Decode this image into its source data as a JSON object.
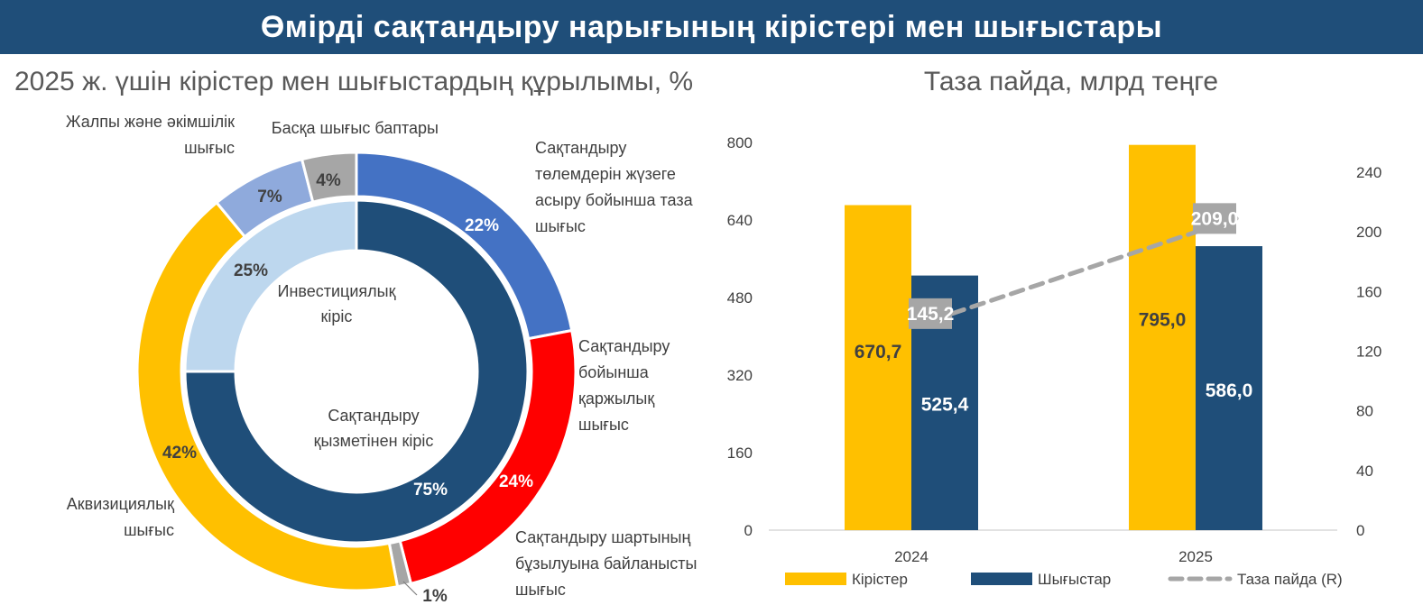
{
  "header": {
    "title": "Өмірді сақтандыру нарығының кірістері мен шығыстары"
  },
  "colors": {
    "banner": "#1f4e79",
    "navy": "#1f4e79",
    "gold": "#ffc000",
    "blue": "#4472c4",
    "red": "#ff0000",
    "light_blue": "#bdd7ee",
    "periwinkle": "#8faadc",
    "gray": "#a6a6a6",
    "dashed_line": "#a6a6a6"
  },
  "chart_data": [
    {
      "type": "pie",
      "variant": "double-donut",
      "title": "2025 ж. үшін кірістер мен шығыстардың құрылымы,  %",
      "inner_ring": {
        "slices": [
          {
            "label_lines": [
              "Сақтандыру",
              "қызметінен кіріс"
            ],
            "value": 75,
            "value_label": "75%",
            "color": "#1f4e79"
          },
          {
            "label_lines": [
              "Инвестициялық",
              "кіріс"
            ],
            "value": 25,
            "value_label": "25%",
            "color": "#bdd7ee"
          }
        ]
      },
      "outer_ring": {
        "slices": [
          {
            "label_lines": [
              "Сақтандыру",
              "төлемдерін жүзеге",
              "асыру бойынша таза",
              "шығыс"
            ],
            "value": 22,
            "value_label": "22%",
            "color": "#4472c4"
          },
          {
            "label_lines": [
              "Сақтандыру",
              "бойынша",
              "қаржылық",
              "шығыс"
            ],
            "value": 24,
            "value_label": "24%",
            "color": "#ff0000"
          },
          {
            "label_lines": [
              "Сақтандыру шартының",
              "бұзылуына байланысты",
              "шығыс"
            ],
            "value": 1,
            "value_label": "1%",
            "color": "#a6a6a6"
          },
          {
            "label_lines": [
              "Аквизициялық",
              "шығыс"
            ],
            "value": 42,
            "value_label": "42%",
            "color": "#ffc000"
          },
          {
            "label_lines": [
              "Жалпы және әкімшілік",
              "шығыс"
            ],
            "value": 7,
            "value_label": "7%",
            "color": "#8faadc"
          },
          {
            "label_lines": [
              "Басқа шығыс баптары"
            ],
            "value": 4,
            "value_label": "4%",
            "color": "#a6a6a6"
          }
        ]
      }
    },
    {
      "type": "bar",
      "title": "Таза пайда, млрд теңге",
      "categories": [
        "2024",
        "2025"
      ],
      "series": [
        {
          "name": "Кірістер",
          "values": [
            670.7,
            795.0
          ],
          "value_labels": [
            "670,7",
            "795,0"
          ],
          "color": "#ffc000",
          "axis": "left"
        },
        {
          "name": "Шығыстар",
          "values": [
            525.4,
            586.0
          ],
          "value_labels": [
            "525,4",
            "586,0"
          ],
          "color": "#1f4e79",
          "axis": "left"
        },
        {
          "name": "Таза пайда (R)",
          "values": [
            145.2,
            209.0
          ],
          "value_labels": [
            "145,2",
            "209,0"
          ],
          "color": "#a6a6a6",
          "axis": "right",
          "style": "dashed-line"
        }
      ],
      "y_left": {
        "min": 0,
        "max": 800,
        "ticks": [
          0,
          160,
          320,
          480,
          640,
          800
        ]
      },
      "y_right": {
        "min": 0,
        "max": 260,
        "ticks": [
          0,
          40,
          80,
          120,
          160,
          200,
          240
        ]
      },
      "legend_position": "bottom",
      "grid": false
    }
  ]
}
